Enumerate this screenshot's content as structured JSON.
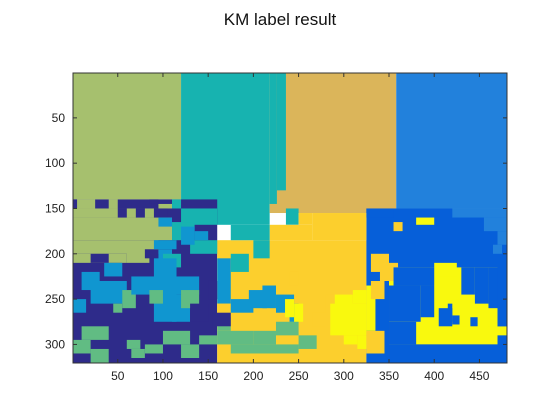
{
  "chart_data": {
    "type": "heatmap",
    "title": "KM label result",
    "xlabel": "",
    "ylabel": "",
    "xlim": [
      0.5,
      480.5
    ],
    "ylim": [
      320.5,
      0.5
    ],
    "y_axis_reversed": true,
    "x_ticks": [
      50,
      100,
      150,
      200,
      250,
      300,
      350,
      400,
      450
    ],
    "y_ticks": [
      50,
      100,
      150,
      200,
      250,
      300
    ],
    "grid": false,
    "legend": "none",
    "colormap": [
      "#a6c06e",
      "#17b3b0",
      "#dbb55a",
      "#2281dc",
      "#2e2b8a",
      "#fccf2d",
      "#065fd9",
      "#f9f90e",
      "#1096d0",
      "#61bc83"
    ],
    "regions": [
      {
        "label": "green-top-left",
        "color": "#a6c06e",
        "x": [
          0,
          120
        ],
        "y": [
          0,
          140
        ]
      },
      {
        "label": "teal-top",
        "color": "#17b3b0",
        "x": [
          120,
          218
        ],
        "y": [
          0,
          168
        ]
      },
      {
        "label": "tan-top",
        "color": "#dbb55a",
        "x": [
          218,
          358
        ],
        "y": [
          0,
          155
        ]
      },
      {
        "label": "blue-top-right",
        "color": "#2281dc",
        "x": [
          358,
          480
        ],
        "y": [
          0,
          150
        ]
      },
      {
        "label": "navy-left",
        "color": "#2e2b8a",
        "x": [
          0,
          160
        ],
        "y": [
          140,
          320
        ]
      },
      {
        "label": "yellow-center",
        "color": "#fccf2d",
        "x": [
          160,
          325
        ],
        "y": [
          185,
          320
        ]
      },
      {
        "label": "dark-blue-right",
        "color": "#065fd9",
        "x": [
          325,
          480
        ],
        "y": [
          150,
          320
        ]
      },
      {
        "label": "bright-yellow-figure",
        "color": "#f9f90e",
        "x": [
          350,
          470
        ],
        "y": [
          215,
          300
        ]
      }
    ]
  }
}
